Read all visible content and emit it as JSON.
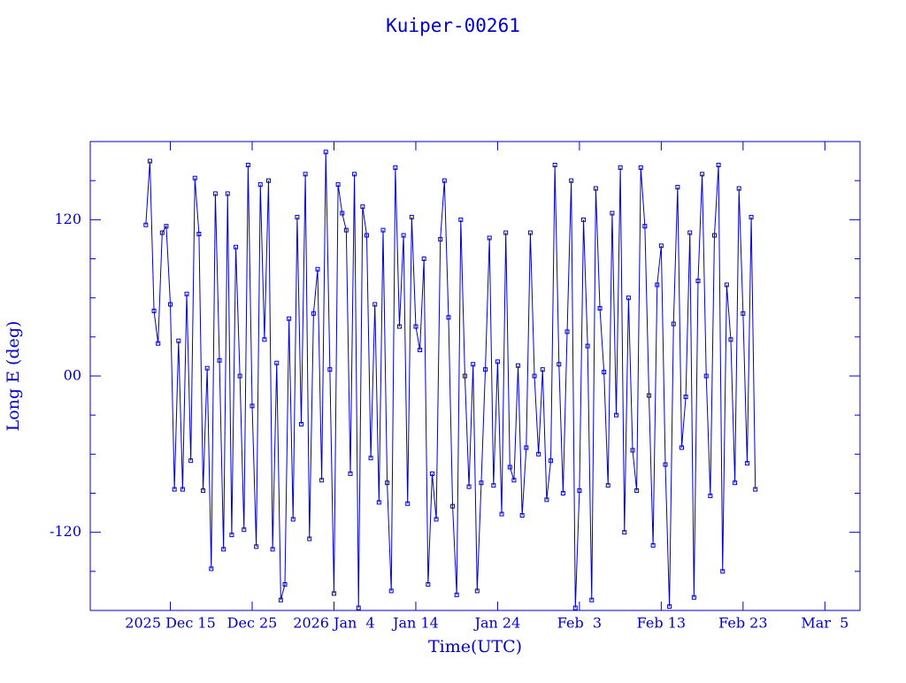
{
  "chart_data": {
    "type": "line",
    "title": "Kuiper-00261",
    "x_label": "Time(UTC)",
    "y_label": "Long E (deg)",
    "color": "#0000c8",
    "marker": "square",
    "xlim": [
      "2025-12-05T05:00",
      "2026-03-09T07:00"
    ],
    "xticks": [
      {
        "value": "2025-12-15T00:00",
        "label": "2025 Dec 15"
      },
      {
        "value": "2025-12-25T00:00",
        "label": "Dec 25"
      },
      {
        "value": "2026-01-04T00:00",
        "label": "2026 Jan  4"
      },
      {
        "value": "2026-01-14T00:00",
        "label": "Jan 14"
      },
      {
        "value": "2026-01-24T00:00",
        "label": "Jan 24"
      },
      {
        "value": "2026-02-03T00:00",
        "label": "Feb  3"
      },
      {
        "value": "2026-02-13T00:00",
        "label": "Feb 13"
      },
      {
        "value": "2026-02-23T00:00",
        "label": "Feb 23"
      },
      {
        "value": "2026-03-05T00:00",
        "label": "Mar  5"
      }
    ],
    "ylim": [
      -180,
      180
    ],
    "yticks": [
      -120,
      {
        "value": 0,
        "label": "00"
      },
      120
    ],
    "yminorticks": [
      -150,
      -90,
      -60,
      -30,
      30,
      60,
      90,
      150
    ],
    "x": [
      "2025-12-12T00:00",
      "2025-12-12T12:00",
      "2025-12-13T00:00",
      "2025-12-13T12:00",
      "2025-12-14T00:00",
      "2025-12-14T12:00",
      "2025-12-15T00:00",
      "2025-12-15T12:00",
      "2025-12-16T00:00",
      "2025-12-16T12:00",
      "2025-12-17T00:00",
      "2025-12-17T12:00",
      "2025-12-18T00:00",
      "2025-12-18T12:00",
      "2025-12-19T00:00",
      "2025-12-19T12:00",
      "2025-12-20T00:00",
      "2025-12-20T12:00",
      "2025-12-21T00:00",
      "2025-12-21T12:00",
      "2025-12-22T00:00",
      "2025-12-22T12:00",
      "2025-12-23T00:00",
      "2025-12-23T12:00",
      "2025-12-24T00:00",
      "2025-12-24T12:00",
      "2025-12-25T00:00",
      "2025-12-25T12:00",
      "2025-12-26T00:00",
      "2025-12-26T12:00",
      "2025-12-27T00:00",
      "2025-12-27T12:00",
      "2025-12-28T00:00",
      "2025-12-28T12:00",
      "2025-12-29T00:00",
      "2025-12-29T12:00",
      "2025-12-30T00:00",
      "2025-12-30T12:00",
      "2025-12-31T00:00",
      "2025-12-31T12:00",
      "2026-01-01T00:00",
      "2026-01-01T12:00",
      "2026-01-02T00:00",
      "2026-01-02T12:00",
      "2026-01-03T00:00",
      "2026-01-03T12:00",
      "2026-01-04T00:00",
      "2026-01-04T12:00",
      "2026-01-05T00:00",
      "2026-01-05T12:00",
      "2026-01-06T00:00",
      "2026-01-06T12:00",
      "2026-01-07T00:00",
      "2026-01-07T12:00",
      "2026-01-08T00:00",
      "2026-01-08T12:00",
      "2026-01-09T00:00",
      "2026-01-09T12:00",
      "2026-01-10T00:00",
      "2026-01-10T12:00",
      "2026-01-11T00:00",
      "2026-01-11T12:00",
      "2026-01-12T00:00",
      "2026-01-12T12:00",
      "2026-01-13T00:00",
      "2026-01-13T12:00",
      "2026-01-14T00:00",
      "2026-01-14T12:00",
      "2026-01-15T00:00",
      "2026-01-15T12:00",
      "2026-01-16T00:00",
      "2026-01-16T12:00",
      "2026-01-17T00:00",
      "2026-01-17T12:00",
      "2026-01-18T00:00",
      "2026-01-18T12:00",
      "2026-01-19T00:00",
      "2026-01-19T12:00",
      "2026-01-20T00:00",
      "2026-01-20T12:00",
      "2026-01-21T00:00",
      "2026-01-21T12:00",
      "2026-01-22T00:00",
      "2026-01-22T12:00",
      "2026-01-23T00:00",
      "2026-01-23T12:00",
      "2026-01-24T00:00",
      "2026-01-24T12:00",
      "2026-01-25T00:00",
      "2026-01-25T12:00",
      "2026-01-26T00:00",
      "2026-01-26T12:00",
      "2026-01-27T00:00",
      "2026-01-27T12:00",
      "2026-01-28T00:00",
      "2026-01-28T12:00",
      "2026-01-29T00:00",
      "2026-01-29T12:00",
      "2026-01-30T00:00",
      "2026-01-30T12:00",
      "2026-01-31T00:00",
      "2026-01-31T12:00",
      "2026-02-01T00:00",
      "2026-02-01T12:00",
      "2026-02-02T00:00",
      "2026-02-02T12:00",
      "2026-02-03T00:00",
      "2026-02-03T12:00",
      "2026-02-04T00:00",
      "2026-02-04T12:00",
      "2026-02-05T00:00",
      "2026-02-05T12:00",
      "2026-02-06T00:00",
      "2026-02-06T12:00",
      "2026-02-07T00:00",
      "2026-02-07T12:00",
      "2026-02-08T00:00",
      "2026-02-08T12:00",
      "2026-02-09T00:00",
      "2026-02-09T12:00",
      "2026-02-10T00:00",
      "2026-02-10T12:00",
      "2026-02-11T00:00",
      "2026-02-11T12:00",
      "2026-02-12T00:00",
      "2026-02-12T12:00",
      "2026-02-13T00:00",
      "2026-02-13T12:00",
      "2026-02-14T00:00",
      "2026-02-14T12:00",
      "2026-02-15T00:00",
      "2026-02-15T12:00",
      "2026-02-16T00:00",
      "2026-02-16T12:00",
      "2026-02-17T00:00",
      "2026-02-17T12:00",
      "2026-02-18T00:00",
      "2026-02-18T12:00",
      "2026-02-19T00:00",
      "2026-02-19T12:00",
      "2026-02-20T00:00",
      "2026-02-20T12:00",
      "2026-02-21T00:00",
      "2026-02-21T12:00",
      "2026-02-22T00:00",
      "2026-02-22T12:00",
      "2026-02-23T00:00",
      "2026-02-23T12:00",
      "2026-02-24T00:00",
      "2026-02-24T12:00"
    ],
    "values": [
      116,
      165,
      50,
      25,
      110,
      115,
      55,
      -87,
      27,
      -87,
      63,
      -65,
      152,
      109,
      -88,
      6,
      -148,
      140,
      12,
      -133,
      140,
      -122,
      99,
      0,
      -118,
      162,
      -23,
      -131,
      147,
      28,
      150,
      -133,
      10,
      -172,
      -160,
      44,
      -110,
      122,
      -37,
      155,
      -125,
      48,
      82,
      -80,
      172,
      5,
      -167,
      147,
      125,
      112,
      -75,
      155,
      -178,
      130,
      108,
      -63,
      55,
      -97,
      112,
      -82,
      -165,
      160,
      38,
      108,
      -98,
      122,
      38,
      20,
      90,
      -160,
      -75,
      -110,
      105,
      150,
      45,
      -100,
      -168,
      120,
      0,
      -85,
      9,
      -165,
      -82,
      5,
      106,
      -84,
      11,
      -106,
      110,
      -70,
      -80,
      8,
      -107,
      -55,
      110,
      0,
      -60,
      5,
      -95,
      -65,
      162,
      9,
      -90,
      34,
      150,
      -178,
      -88,
      120,
      23,
      -172,
      144,
      52,
      3,
      -84,
      125,
      -30,
      160,
      -120,
      60,
      -57,
      -88,
      160,
      115,
      -15,
      -130,
      70,
      100,
      -68,
      -177,
      40,
      145,
      -55,
      -16,
      110,
      -170,
      73,
      155,
      0,
      -92,
      108,
      162,
      -150,
      70,
      28,
      -82,
      144,
      48,
      -67,
      122,
      -87
    ]
  }
}
